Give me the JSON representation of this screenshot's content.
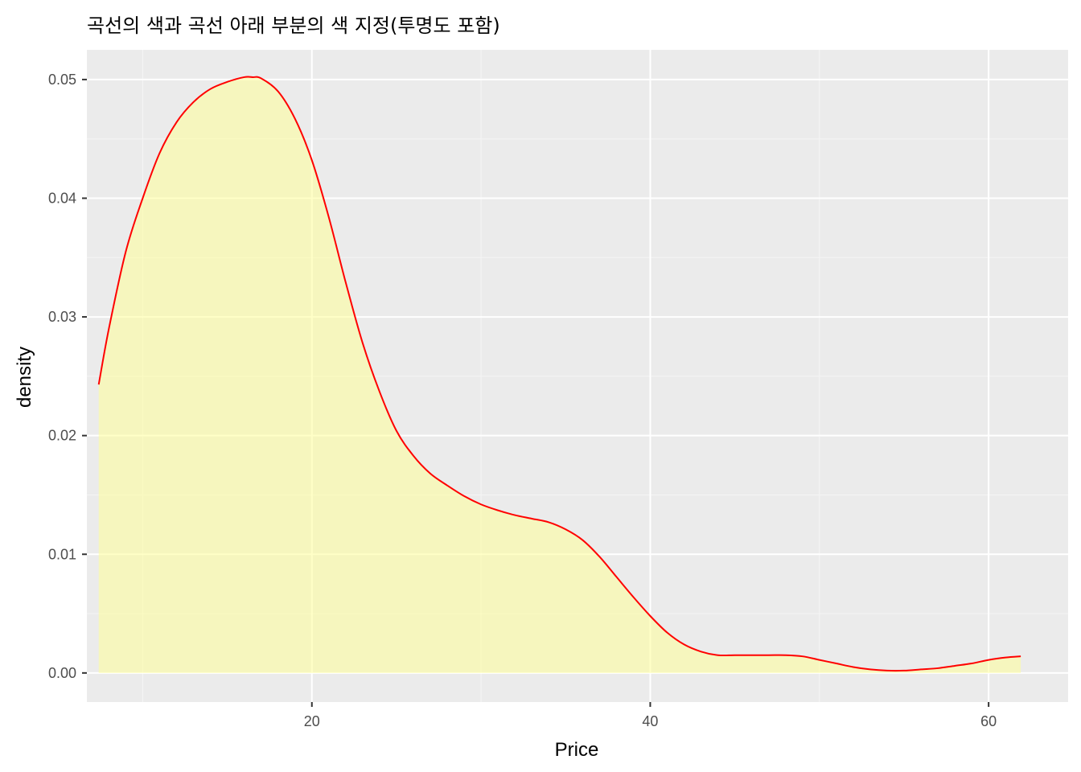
{
  "chart_data": {
    "type": "area",
    "title": "곡선의 색과 곡선 아래 부분의 색 지정(투명도 포함)",
    "xlabel": "Price",
    "ylabel": "density",
    "xlim": [
      6.7,
      64.7
    ],
    "ylim": [
      -0.00245,
      0.0525
    ],
    "x_ticks": [
      20,
      40,
      60
    ],
    "x_tick_labels": [
      "20",
      "40",
      "60"
    ],
    "x_minor_ticks": [
      10,
      30,
      50
    ],
    "y_ticks": [
      0,
      0.01,
      0.02,
      0.03,
      0.04,
      0.05
    ],
    "y_tick_labels": [
      "0.00",
      "0.01",
      "0.02",
      "0.03",
      "0.04",
      "0.05"
    ],
    "y_minor_ticks": [
      0.005,
      0.015,
      0.025,
      0.035,
      0.045
    ],
    "grid": true,
    "colors": {
      "panel_background": "#ebebeb",
      "grid_major": "#ffffff",
      "grid_minor": "#f5f5f5",
      "line": "#ff0000",
      "fill": "#ffff99",
      "fill_opacity": 0.55
    },
    "series": [
      {
        "x": [
          7.4,
          8,
          9,
          10,
          11,
          12,
          13,
          14,
          15,
          16,
          16.5,
          17,
          18,
          19,
          20,
          21,
          22,
          23,
          24,
          25,
          26,
          27,
          28,
          29,
          30,
          31,
          32,
          33,
          34,
          35,
          36,
          37,
          38,
          39,
          40,
          41,
          42,
          43,
          44,
          45,
          46,
          47,
          48,
          49,
          50,
          51,
          52,
          53,
          54,
          55,
          56,
          57,
          58,
          59,
          60,
          61,
          61.9
        ],
        "y": [
          0.0243,
          0.029,
          0.0355,
          0.04,
          0.0438,
          0.0464,
          0.0481,
          0.0492,
          0.0498,
          0.0502,
          0.0502,
          0.0501,
          0.049,
          0.0467,
          0.0432,
          0.0384,
          0.0329,
          0.0278,
          0.0237,
          0.0204,
          0.0183,
          0.0168,
          0.0158,
          0.0149,
          0.0142,
          0.0137,
          0.0133,
          0.013,
          0.0127,
          0.0121,
          0.0112,
          0.0098,
          0.0081,
          0.0064,
          0.0048,
          0.0034,
          0.0024,
          0.0018,
          0.0015,
          0.0015,
          0.0015,
          0.0015,
          0.0015,
          0.0014,
          0.0011,
          0.0008,
          0.0005,
          0.0003,
          0.0002,
          0.0002,
          0.0003,
          0.0004,
          0.0006,
          0.0008,
          0.0011,
          0.0013,
          0.0014
        ]
      }
    ]
  }
}
